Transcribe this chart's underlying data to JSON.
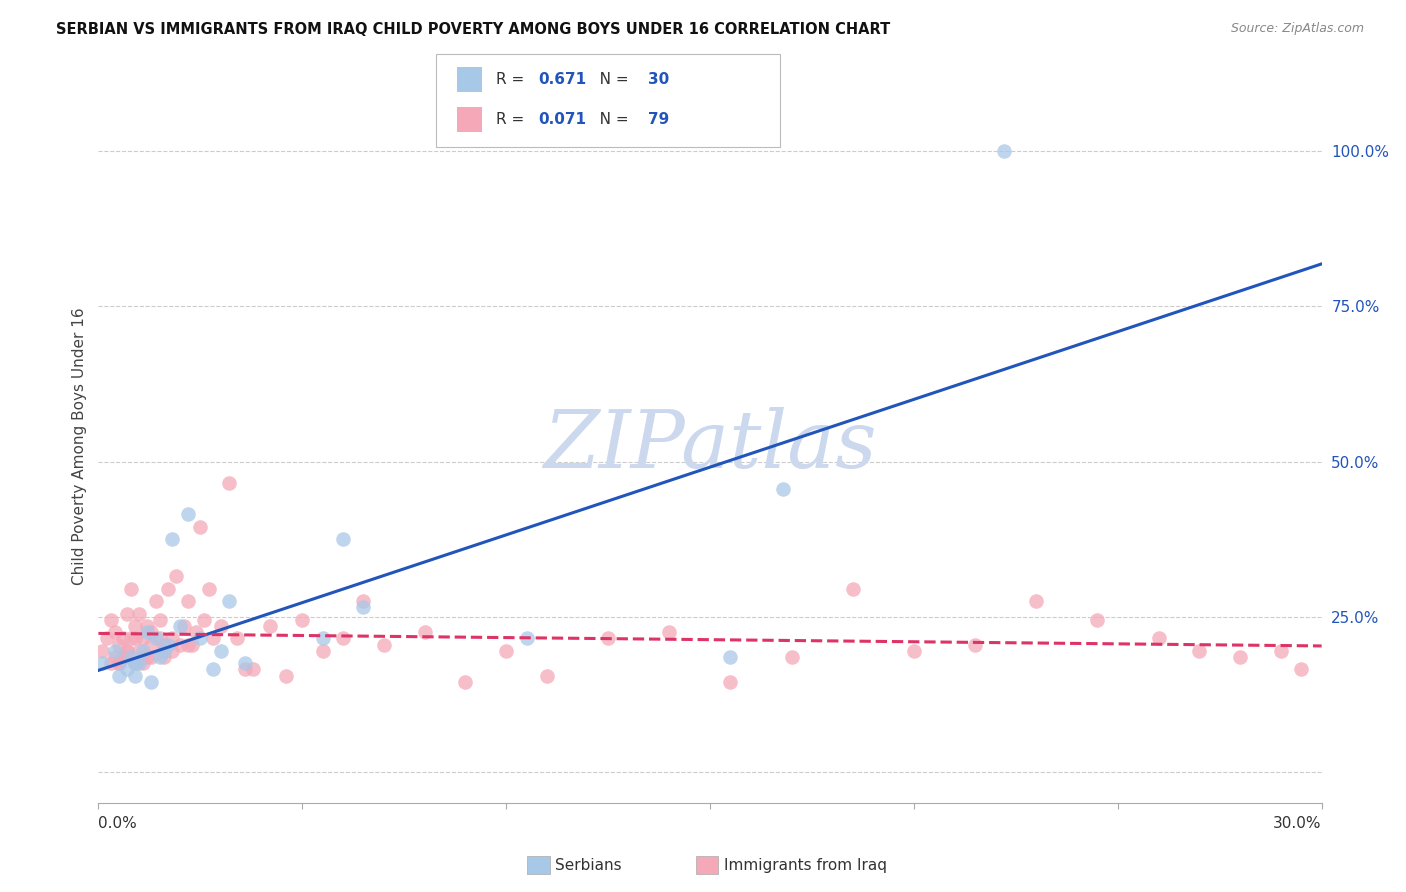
{
  "title": "SERBIAN VS IMMIGRANTS FROM IRAQ CHILD POVERTY AMONG BOYS UNDER 16 CORRELATION CHART",
  "source": "Source: ZipAtlas.com",
  "ylabel": "Child Poverty Among Boys Under 16",
  "xlim": [
    0.0,
    0.3
  ],
  "ylim": [
    -0.05,
    1.1
  ],
  "serbian_color": "#a8c8e8",
  "iraq_color": "#f4a8b8",
  "serbian_line_color": "#2255bb",
  "iraq_line_color": "#dd3366",
  "serbian_R": 0.671,
  "serbian_N": 30,
  "iraq_R": 0.071,
  "iraq_N": 79,
  "watermark": "ZIPatlas",
  "watermark_color": "#ccd8ee",
  "legend_text_color": "#2255bb",
  "serbian_scatter_x": [
    0.001,
    0.004,
    0.005,
    0.007,
    0.008,
    0.009,
    0.009,
    0.01,
    0.011,
    0.012,
    0.013,
    0.014,
    0.015,
    0.016,
    0.017,
    0.018,
    0.02,
    0.022,
    0.025,
    0.028,
    0.03,
    0.032,
    0.036,
    0.055,
    0.06,
    0.065,
    0.105,
    0.155,
    0.168,
    0.222
  ],
  "serbian_scatter_y": [
    0.175,
    0.195,
    0.155,
    0.165,
    0.185,
    0.175,
    0.155,
    0.175,
    0.195,
    0.225,
    0.145,
    0.215,
    0.185,
    0.195,
    0.205,
    0.375,
    0.235,
    0.415,
    0.215,
    0.165,
    0.195,
    0.275,
    0.175,
    0.215,
    0.375,
    0.265,
    0.215,
    0.185,
    0.455,
    1.0
  ],
  "iraq_scatter_x": [
    0.001,
    0.002,
    0.003,
    0.003,
    0.004,
    0.004,
    0.005,
    0.005,
    0.006,
    0.006,
    0.007,
    0.007,
    0.008,
    0.008,
    0.009,
    0.009,
    0.01,
    0.01,
    0.011,
    0.011,
    0.012,
    0.012,
    0.013,
    0.013,
    0.014,
    0.015,
    0.015,
    0.016,
    0.016,
    0.017,
    0.018,
    0.019,
    0.02,
    0.021,
    0.022,
    0.023,
    0.024,
    0.025,
    0.026,
    0.027,
    0.028,
    0.03,
    0.032,
    0.034,
    0.036,
    0.038,
    0.042,
    0.046,
    0.05,
    0.055,
    0.06,
    0.065,
    0.07,
    0.08,
    0.09,
    0.1,
    0.11,
    0.125,
    0.14,
    0.155,
    0.17,
    0.185,
    0.2,
    0.215,
    0.23,
    0.245,
    0.26,
    0.27,
    0.28,
    0.29,
    0.295,
    0.005,
    0.007,
    0.009,
    0.011,
    0.013,
    0.016,
    0.018,
    0.022
  ],
  "iraq_scatter_y": [
    0.195,
    0.215,
    0.175,
    0.245,
    0.185,
    0.225,
    0.175,
    0.205,
    0.185,
    0.215,
    0.255,
    0.195,
    0.215,
    0.295,
    0.175,
    0.235,
    0.195,
    0.255,
    0.185,
    0.215,
    0.235,
    0.185,
    0.205,
    0.225,
    0.275,
    0.215,
    0.245,
    0.185,
    0.205,
    0.295,
    0.195,
    0.315,
    0.205,
    0.235,
    0.275,
    0.205,
    0.225,
    0.395,
    0.245,
    0.295,
    0.215,
    0.235,
    0.465,
    0.215,
    0.165,
    0.165,
    0.235,
    0.155,
    0.245,
    0.195,
    0.215,
    0.275,
    0.205,
    0.225,
    0.145,
    0.195,
    0.155,
    0.215,
    0.225,
    0.145,
    0.185,
    0.295,
    0.195,
    0.205,
    0.275,
    0.245,
    0.215,
    0.195,
    0.185,
    0.195,
    0.165,
    0.175,
    0.195,
    0.215,
    0.175,
    0.185,
    0.195,
    0.215,
    0.205
  ]
}
